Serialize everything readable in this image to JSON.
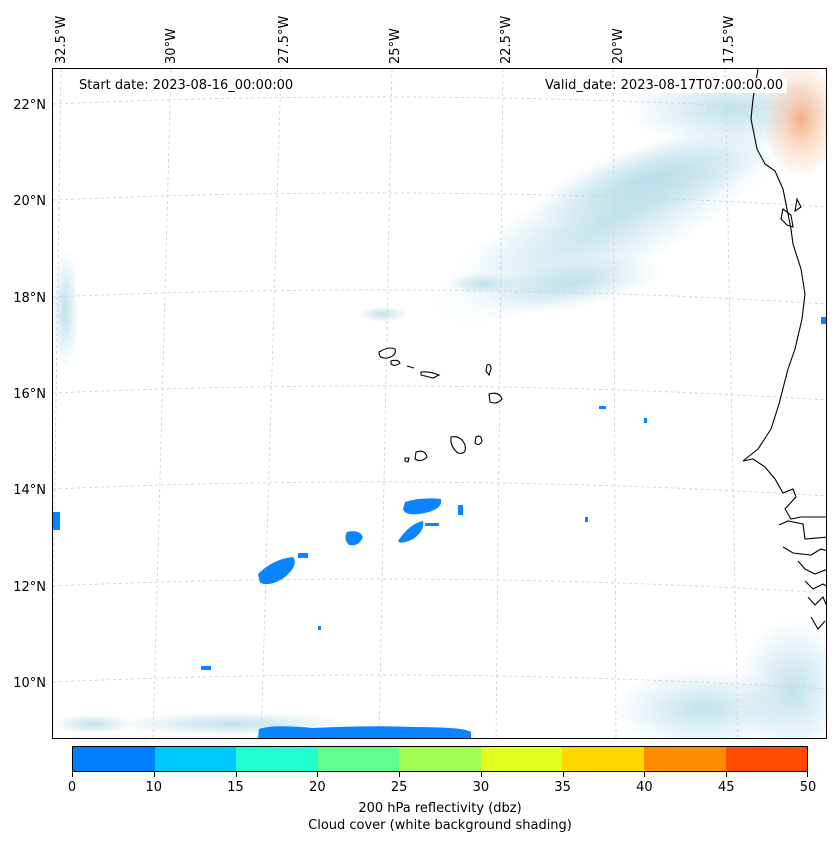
{
  "map": {
    "start_date": "Start date: 2023-08-16_00:00:00",
    "valid_date": "Valid_date: 2023-08-17T07:00:00.00",
    "lon_labels": [
      "32.5°W",
      "30°W",
      "27.5°W",
      "25°W",
      "22.5°W",
      "20°W",
      "17.5°W"
    ],
    "lat_labels": [
      "22°N",
      "20°N",
      "18°N",
      "16°N",
      "14°N",
      "12°N",
      "10°N"
    ],
    "colors": {
      "coastline": "#000000",
      "cloud": "#add8e6",
      "reflectivity_low": "#0080ff",
      "warm_patch": "#f6a87a"
    }
  },
  "colorbar": {
    "ticks": [
      "0",
      "10",
      "15",
      "20",
      "25",
      "30",
      "35",
      "40",
      "45",
      "50"
    ],
    "colors": [
      "#0080ff",
      "#00c8ff",
      "#20ffd0",
      "#60ff90",
      "#a0ff50",
      "#e0ff20",
      "#ffd800",
      "#ff8c00",
      "#ff4a00"
    ],
    "label": "200 hPa reflectivity (dbz)",
    "sublabel": "Cloud cover (white background shading)"
  }
}
